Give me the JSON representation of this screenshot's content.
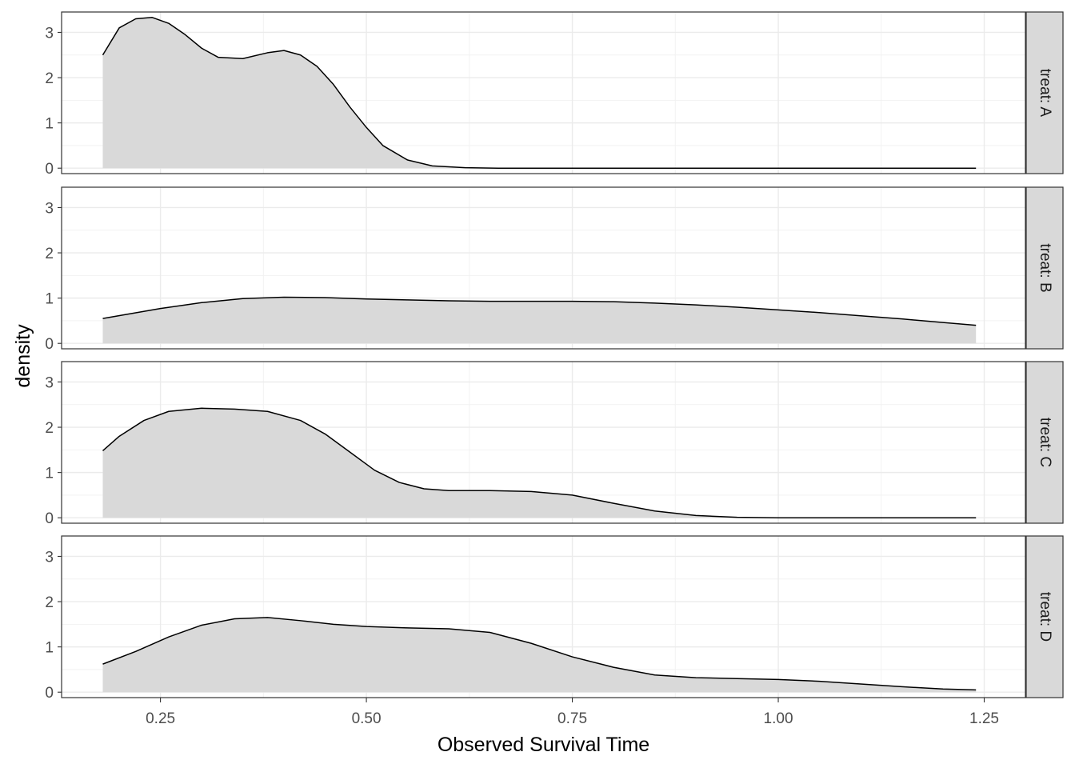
{
  "chart_data": {
    "type": "area",
    "subtype": "faceted density",
    "xlabel": "Observed Survival Time",
    "ylabel": "density",
    "xlim": [
      0.13,
      1.3
    ],
    "ylim": [
      -0.12,
      3.45
    ],
    "x_ticks": [
      0.25,
      0.5,
      0.75,
      1.0,
      1.25
    ],
    "x_tick_labels": [
      "0.25",
      "0.50",
      "0.75",
      "1.00",
      "1.25"
    ],
    "y_ticks": [
      0,
      1,
      2,
      3
    ],
    "y_tick_labels": [
      "0",
      "1",
      "2",
      "3"
    ],
    "grid": true,
    "facet_direction": "rows",
    "fill_color": "#d9d9d9",
    "line_color": "#000000",
    "strip_color": "#d9d9d9",
    "panels": [
      {
        "strip_label": "treat: A",
        "x": [
          0.18,
          0.2,
          0.22,
          0.24,
          0.26,
          0.28,
          0.3,
          0.32,
          0.35,
          0.38,
          0.4,
          0.42,
          0.44,
          0.46,
          0.48,
          0.5,
          0.52,
          0.55,
          0.58,
          0.62,
          0.66,
          0.7,
          0.8,
          0.9,
          1.0,
          1.1,
          1.24
        ],
        "y": [
          2.5,
          3.1,
          3.3,
          3.33,
          3.2,
          2.95,
          2.65,
          2.45,
          2.42,
          2.55,
          2.6,
          2.5,
          2.25,
          1.85,
          1.35,
          0.9,
          0.5,
          0.18,
          0.05,
          0.01,
          0.0,
          0.0,
          0.0,
          0.0,
          0.0,
          0.0,
          0.0
        ]
      },
      {
        "strip_label": "treat: B",
        "x": [
          0.18,
          0.25,
          0.3,
          0.35,
          0.4,
          0.45,
          0.5,
          0.55,
          0.6,
          0.65,
          0.7,
          0.75,
          0.8,
          0.85,
          0.9,
          0.95,
          1.0,
          1.05,
          1.1,
          1.15,
          1.2,
          1.24
        ],
        "y": [
          0.55,
          0.77,
          0.9,
          0.99,
          1.02,
          1.01,
          0.98,
          0.96,
          0.94,
          0.93,
          0.93,
          0.93,
          0.92,
          0.89,
          0.85,
          0.8,
          0.74,
          0.68,
          0.61,
          0.54,
          0.46,
          0.4
        ]
      },
      {
        "strip_label": "treat: C",
        "x": [
          0.18,
          0.2,
          0.23,
          0.26,
          0.3,
          0.34,
          0.38,
          0.42,
          0.45,
          0.48,
          0.51,
          0.54,
          0.57,
          0.6,
          0.65,
          0.7,
          0.75,
          0.8,
          0.85,
          0.9,
          0.95,
          1.0,
          1.1,
          1.24
        ],
        "y": [
          1.48,
          1.8,
          2.15,
          2.35,
          2.42,
          2.4,
          2.35,
          2.15,
          1.85,
          1.45,
          1.05,
          0.78,
          0.64,
          0.6,
          0.6,
          0.58,
          0.5,
          0.32,
          0.15,
          0.05,
          0.01,
          0.0,
          0.0,
          0.0
        ]
      },
      {
        "strip_label": "treat: D",
        "x": [
          0.18,
          0.22,
          0.26,
          0.3,
          0.34,
          0.38,
          0.42,
          0.46,
          0.5,
          0.55,
          0.6,
          0.65,
          0.7,
          0.75,
          0.8,
          0.85,
          0.9,
          0.95,
          1.0,
          1.05,
          1.1,
          1.15,
          1.2,
          1.24
        ],
        "y": [
          0.62,
          0.9,
          1.22,
          1.48,
          1.62,
          1.65,
          1.58,
          1.5,
          1.45,
          1.42,
          1.4,
          1.32,
          1.08,
          0.78,
          0.55,
          0.38,
          0.32,
          0.3,
          0.28,
          0.24,
          0.18,
          0.12,
          0.07,
          0.05
        ]
      }
    ]
  }
}
